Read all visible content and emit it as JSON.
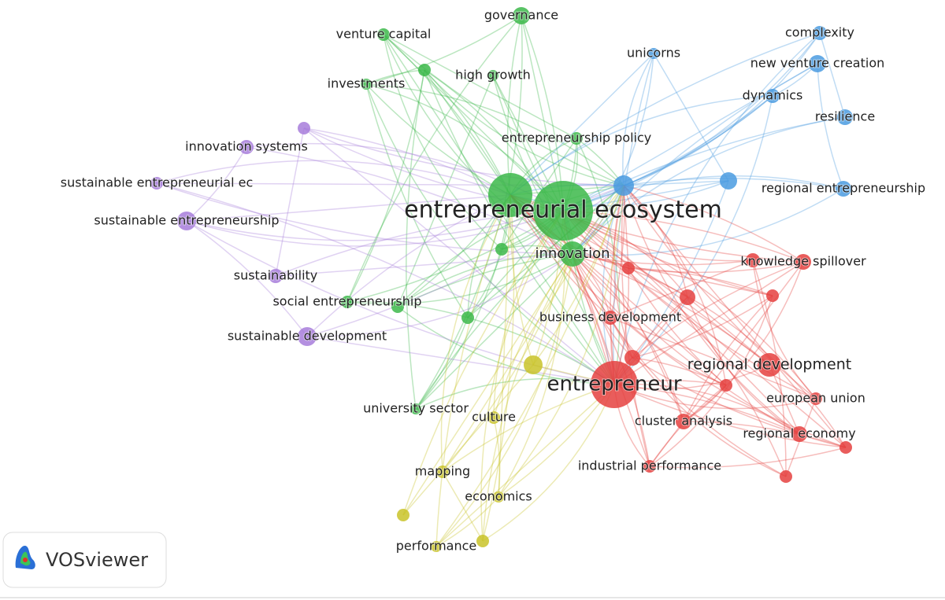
{
  "nodes": [
    {
      "label": "entrepreneurial ecosystem"
    },
    {
      "label": "innovation"
    },
    {
      "label": "governance"
    },
    {
      "label": "venture capital"
    },
    {
      "label": "investments"
    },
    {
      "label": "high growth"
    },
    {
      "label": "entrepreneurship policy"
    },
    {
      "label": "social entrepreneurship"
    },
    {
      "label": "university sector"
    },
    {
      "label": "innovation systems"
    },
    {
      "label": "sustainable entrepreneurial ec"
    },
    {
      "label": "sustainable entrepreneurship"
    },
    {
      "label": "sustainability"
    },
    {
      "label": "sustainable development"
    },
    {
      "label": "complexity"
    },
    {
      "label": "new venture creation"
    },
    {
      "label": "unicorns"
    },
    {
      "label": "dynamics"
    },
    {
      "label": "resilience"
    },
    {
      "label": "regional entrepreneurship"
    },
    {
      "label": "entrepreneur"
    },
    {
      "label": "knowledge spillover"
    },
    {
      "label": "business development"
    },
    {
      "label": "regional development"
    },
    {
      "label": "european union"
    },
    {
      "label": "cluster analysis"
    },
    {
      "label": "regional economy"
    },
    {
      "label": "industrial performance"
    },
    {
      "label": "culture"
    },
    {
      "label": "mapping"
    },
    {
      "label": "economics"
    },
    {
      "label": "performance"
    }
  ],
  "logo": {
    "text": "VOSviewer"
  }
}
